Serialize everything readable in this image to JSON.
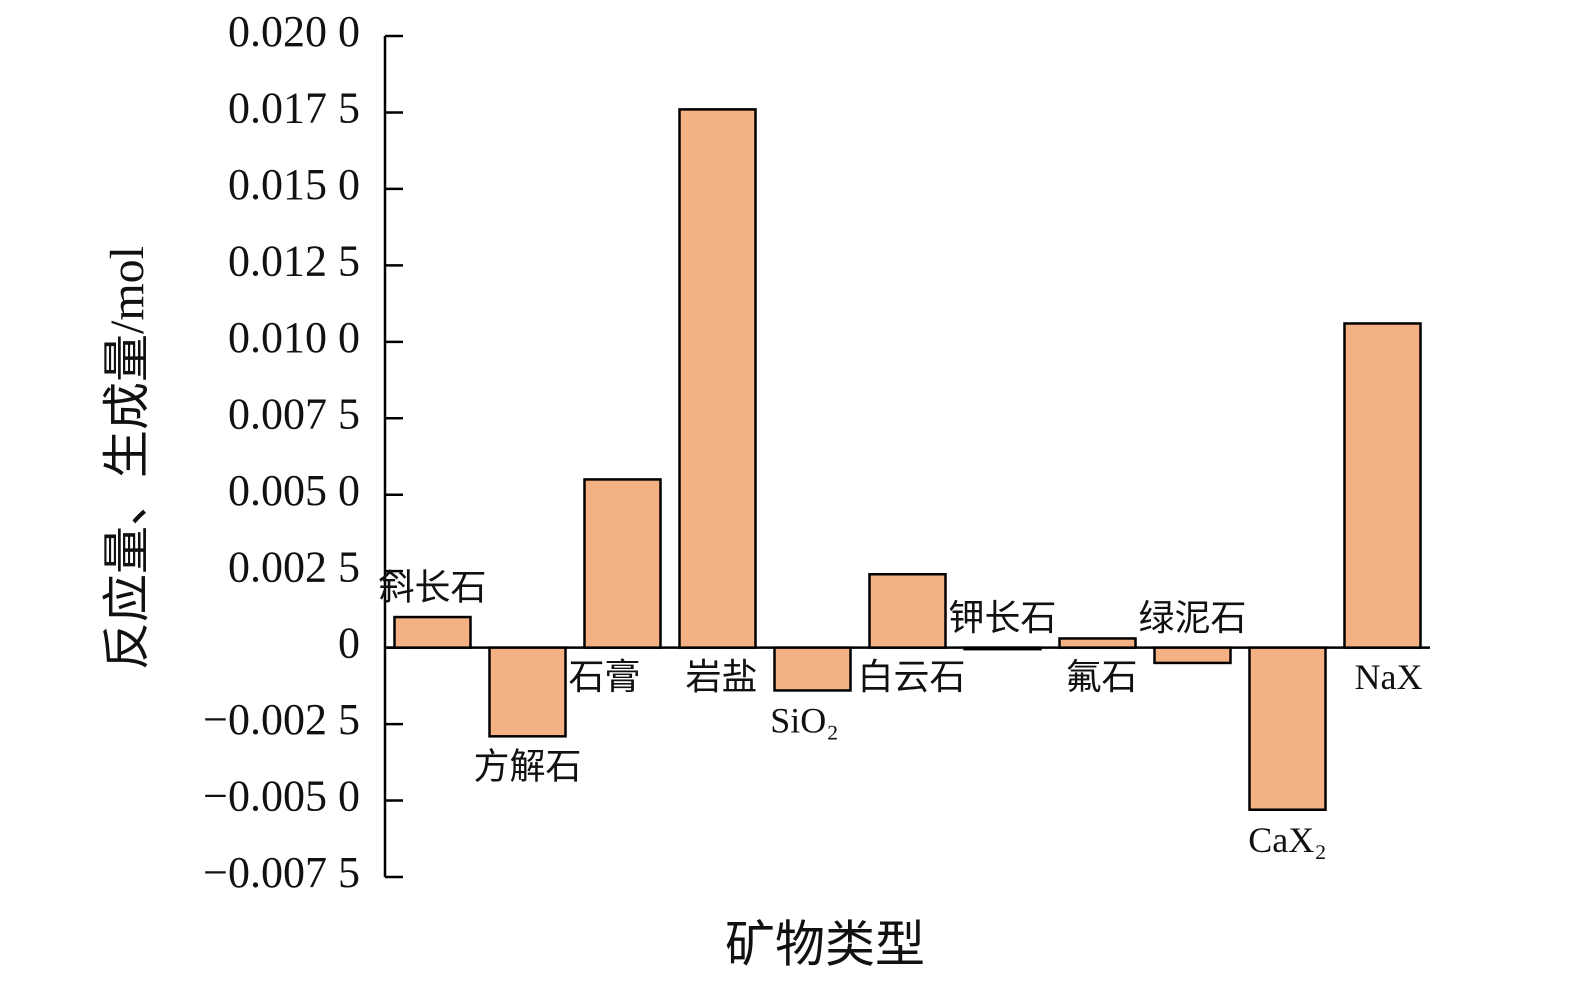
{
  "chart_data": {
    "type": "bar",
    "x_label": "矿物类型",
    "y_label": "反应量、生成量/mol",
    "categories": [
      "斜长石",
      "方解石",
      "石膏",
      "岩盐",
      "SiO₂",
      "白云石",
      "钾长石",
      "氟石",
      "绿泥石",
      "CaX₂",
      "NaX"
    ],
    "values": [
      0.001,
      -0.0029,
      0.0055,
      0.0176,
      -0.0014,
      0.0024,
      -5e-05,
      0.0003,
      -0.0005,
      -0.0053,
      0.0106
    ],
    "color": "#f4b183",
    "ylim": [
      -0.0075,
      0.02
    ],
    "yticks": [
      {
        "value": -0.0075,
        "label": "−0.007 5"
      },
      {
        "value": -0.005,
        "label": "−0.005 0"
      },
      {
        "value": -0.0025,
        "label": "−0.002 5"
      },
      0,
      {
        "value": 0.0025,
        "label": "0.002 5"
      },
      {
        "value": 0.005,
        "label": "0.005 0"
      },
      {
        "value": 0.0075,
        "label": "0.007 5"
      },
      {
        "value": 0.01,
        "label": "0.010 0"
      },
      {
        "value": 0.0125,
        "label": "0.012 5"
      },
      {
        "value": 0.015,
        "label": "0.015 0"
      },
      {
        "value": 0.0175,
        "label": "0.017 5"
      },
      {
        "value": 0.02,
        "label": "0.020 0"
      }
    ]
  }
}
